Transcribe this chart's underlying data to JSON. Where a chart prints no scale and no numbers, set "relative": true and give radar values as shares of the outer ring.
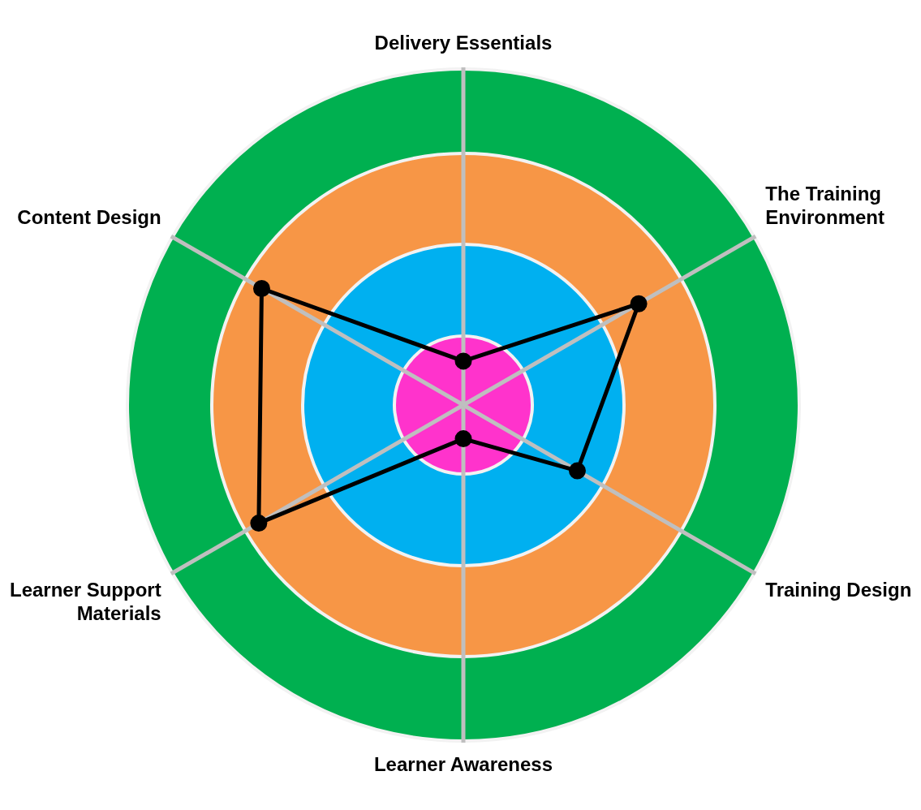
{
  "chart_data": {
    "type": "radar",
    "relative": true,
    "categories": [
      "Delivery Essentials",
      "The Training Environment",
      "Training Design",
      "Learner Awareness",
      "Learner Support Materials",
      "Content Design"
    ],
    "series": [
      {
        "color": "#000000",
        "values": [
          0.13,
          0.6,
          0.39,
          0.1,
          0.7,
          0.69
        ]
      }
    ],
    "marker": "circle",
    "line_style": "solid",
    "legend": false
  }
}
